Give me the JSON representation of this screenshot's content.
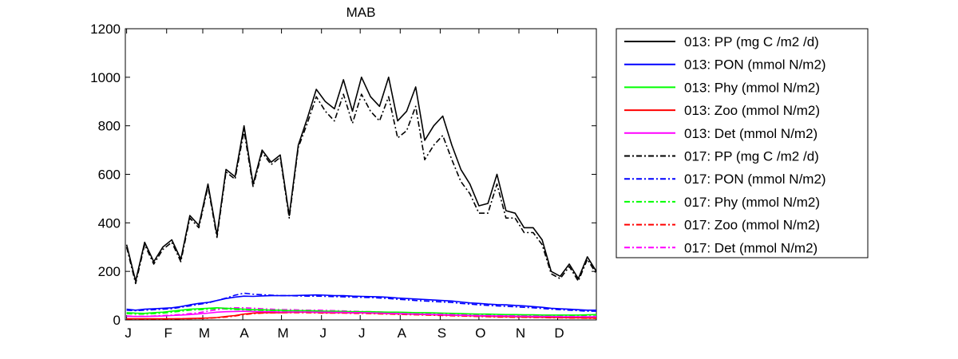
{
  "chart_data": {
    "type": "line",
    "title": "MAB",
    "xlabel": "",
    "ylabel": "",
    "xlim": [
      0,
      365
    ],
    "ylim": [
      0,
      1200
    ],
    "yticks": [
      0,
      200,
      400,
      600,
      800,
      1000,
      1200
    ],
    "month_labels": [
      "J",
      "F",
      "M",
      "A",
      "M",
      "J",
      "J",
      "A",
      "S",
      "O",
      "N",
      "D"
    ],
    "month_positions": [
      1,
      32,
      60,
      91,
      121,
      152,
      182,
      213,
      244,
      274,
      305,
      335
    ],
    "grid": false,
    "legend_position": "outside-right",
    "x": [
      1,
      8,
      15,
      22,
      29,
      36,
      43,
      50,
      57,
      64,
      71,
      78,
      85,
      92,
      99,
      106,
      113,
      120,
      127,
      134,
      141,
      148,
      155,
      162,
      169,
      176,
      183,
      190,
      197,
      204,
      211,
      218,
      225,
      232,
      239,
      246,
      253,
      260,
      267,
      274,
      281,
      288,
      295,
      302,
      309,
      316,
      323,
      330,
      337,
      344,
      351,
      358,
      365
    ],
    "series": [
      {
        "name": "013: PP (mg C /m2 /d)",
        "color": "#000000",
        "dash": "solid",
        "values": [
          310,
          160,
          320,
          240,
          300,
          330,
          250,
          430,
          390,
          560,
          350,
          620,
          590,
          800,
          560,
          700,
          650,
          680,
          430,
          720,
          830,
          950,
          900,
          870,
          990,
          860,
          1000,
          920,
          880,
          1000,
          820,
          860,
          960,
          740,
          800,
          840,
          720,
          620,
          560,
          470,
          480,
          600,
          450,
          440,
          380,
          380,
          330,
          200,
          180,
          230,
          170,
          260,
          200
        ]
      },
      {
        "name": "013: PON (mmol N/m2)",
        "color": "#0000ff",
        "dash": "solid",
        "values": [
          44,
          40,
          44,
          46,
          48,
          50,
          55,
          62,
          68,
          72,
          80,
          88,
          94,
          98,
          97,
          99,
          100,
          100,
          100,
          101,
          102,
          103,
          102,
          100,
          100,
          98,
          97,
          96,
          95,
          93,
          90,
          88,
          86,
          84,
          82,
          80,
          78,
          74,
          70,
          68,
          65,
          63,
          62,
          60,
          58,
          55,
          52,
          48,
          46,
          44,
          42,
          40,
          40
        ]
      },
      {
        "name": "013: Phy (mmol N/m2)",
        "color": "#00ff00",
        "dash": "solid",
        "values": [
          30,
          28,
          27,
          30,
          32,
          36,
          40,
          44,
          46,
          48,
          50,
          48,
          46,
          44,
          42,
          42,
          40,
          40,
          38,
          38,
          38,
          37,
          36,
          36,
          35,
          34,
          34,
          34,
          33,
          32,
          32,
          31,
          30,
          30,
          29,
          28,
          27,
          26,
          25,
          24,
          24,
          23,
          22,
          22,
          21,
          21,
          20,
          20,
          20,
          20,
          20,
          21,
          22
        ]
      },
      {
        "name": "013: Zoo (mmol N/m2)",
        "color": "#ff0000",
        "dash": "solid",
        "values": [
          5,
          5,
          5,
          5,
          5,
          5,
          5,
          6,
          7,
          8,
          10,
          14,
          18,
          24,
          28,
          30,
          30,
          30,
          31,
          32,
          32,
          31,
          30,
          30,
          30,
          29,
          29,
          28,
          27,
          26,
          25,
          24,
          23,
          22,
          21,
          20,
          19,
          18,
          17,
          16,
          15,
          14,
          13,
          13,
          12,
          12,
          11,
          10,
          10,
          9,
          9,
          8,
          8
        ]
      },
      {
        "name": "013: Det (mmol N/m2)",
        "color": "#ff00ff",
        "dash": "solid",
        "values": [
          15,
          14,
          14,
          15,
          16,
          18,
          20,
          22,
          25,
          28,
          32,
          34,
          35,
          36,
          35,
          34,
          34,
          33,
          33,
          33,
          33,
          32,
          32,
          31,
          31,
          30,
          30,
          29,
          28,
          27,
          26,
          25,
          24,
          23,
          22,
          21,
          20,
          19,
          18,
          17,
          17,
          16,
          16,
          15,
          15,
          14,
          14,
          14,
          13,
          13,
          13,
          13,
          13
        ]
      },
      {
        "name": "017: PP (mg C /m2 /d)",
        "color": "#000000",
        "dash": "dashdot",
        "values": [
          300,
          150,
          310,
          230,
          290,
          320,
          240,
          420,
          380,
          550,
          340,
          610,
          580,
          780,
          550,
          690,
          640,
          670,
          420,
          710,
          810,
          920,
          860,
          820,
          930,
          810,
          930,
          860,
          820,
          920,
          750,
          780,
          880,
          660,
          720,
          760,
          660,
          570,
          520,
          440,
          440,
          560,
          420,
          420,
          360,
          360,
          310,
          190,
          170,
          220,
          160,
          250,
          190
        ]
      },
      {
        "name": "017: PON (mmol N/m2)",
        "color": "#0000ff",
        "dash": "dashdot",
        "values": [
          40,
          38,
          40,
          42,
          44,
          46,
          52,
          58,
          64,
          70,
          80,
          90,
          102,
          110,
          106,
          104,
          102,
          100,
          100,
          99,
          98,
          98,
          97,
          96,
          95,
          94,
          93,
          92,
          90,
          88,
          85,
          83,
          80,
          78,
          76,
          74,
          72,
          68,
          65,
          62,
          60,
          58,
          56,
          54,
          52,
          50,
          47,
          44,
          42,
          40,
          38,
          36,
          36
        ]
      },
      {
        "name": "017: Phy (mmol N/m2)",
        "color": "#00ff00",
        "dash": "dashdot",
        "values": [
          26,
          24,
          24,
          26,
          28,
          32,
          36,
          40,
          42,
          44,
          46,
          45,
          43,
          42,
          40,
          39,
          38,
          37,
          36,
          36,
          35,
          35,
          34,
          33,
          33,
          32,
          32,
          31,
          30,
          30,
          29,
          28,
          28,
          27,
          26,
          25,
          24,
          23,
          22,
          22,
          21,
          20,
          20,
          19,
          19,
          18,
          18,
          18,
          18,
          18,
          18,
          19,
          20
        ]
      },
      {
        "name": "017: Zoo (mmol N/m2)",
        "color": "#ff0000",
        "dash": "dashdot",
        "values": [
          4,
          4,
          4,
          4,
          4,
          4,
          5,
          5,
          6,
          7,
          9,
          12,
          16,
          22,
          26,
          28,
          29,
          30,
          30,
          30,
          30,
          29,
          28,
          28,
          28,
          27,
          27,
          26,
          25,
          24,
          23,
          22,
          21,
          20,
          19,
          18,
          17,
          16,
          15,
          14,
          13,
          12,
          12,
          11,
          11,
          10,
          10,
          9,
          9,
          8,
          8,
          7,
          7
        ]
      },
      {
        "name": "017: Det (mmol N/m2)",
        "color": "#ff00ff",
        "dash": "dashdot",
        "values": [
          16,
          15,
          15,
          16,
          18,
          20,
          22,
          26,
          30,
          36,
          42,
          48,
          50,
          50,
          48,
          46,
          44,
          42,
          42,
          41,
          40,
          40,
          39,
          38,
          37,
          36,
          35,
          34,
          33,
          31,
          30,
          28,
          26,
          25,
          24,
          23,
          22,
          21,
          20,
          19,
          18,
          18,
          17,
          17,
          16,
          16,
          15,
          15,
          15,
          14,
          14,
          14,
          14
        ]
      }
    ]
  }
}
